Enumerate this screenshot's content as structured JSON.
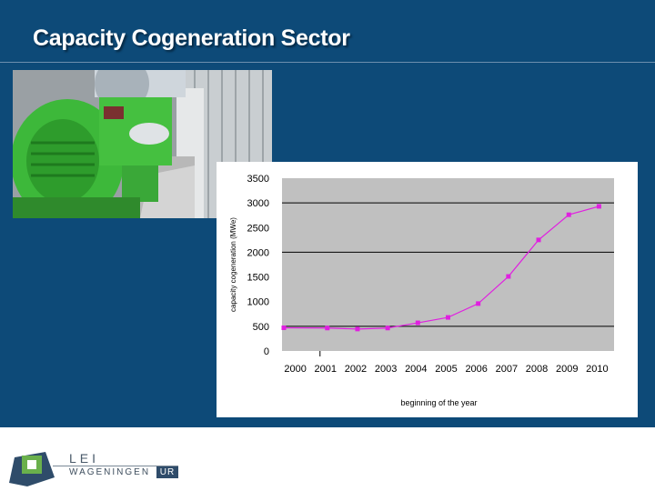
{
  "slide": {
    "title": "Capacity Cogeneration Sector"
  },
  "chart_data": {
    "type": "line",
    "title": "",
    "xlabel": "beginning of the year",
    "ylabel": "capacity cogeneration (MWe)",
    "categories": [
      "2000",
      "2001",
      "2002",
      "2003",
      "2004",
      "2005",
      "2006",
      "2007",
      "2008",
      "2009",
      "2010"
    ],
    "series": [
      {
        "name": "",
        "color": "#e020e0",
        "values": [
          470,
          465,
          445,
          465,
          570,
          680,
          960,
          1510,
          2250,
          2760,
          2930
        ]
      }
    ],
    "ylim": [
      0,
      3500
    ],
    "yticks": [
      0,
      500,
      1000,
      1500,
      2000,
      2500,
      3000,
      3500
    ],
    "gridlines": [
      500,
      2000,
      3000
    ],
    "plot_background": "#c0c0c0",
    "legend": "none"
  },
  "footer": {
    "logo_top": "LEI",
    "logo_bottom": "WAGENINGEN",
    "logo_badge": "UR",
    "logo_colors": {
      "square": "#6ab04c",
      "wedge": "#2f4c6a"
    }
  }
}
